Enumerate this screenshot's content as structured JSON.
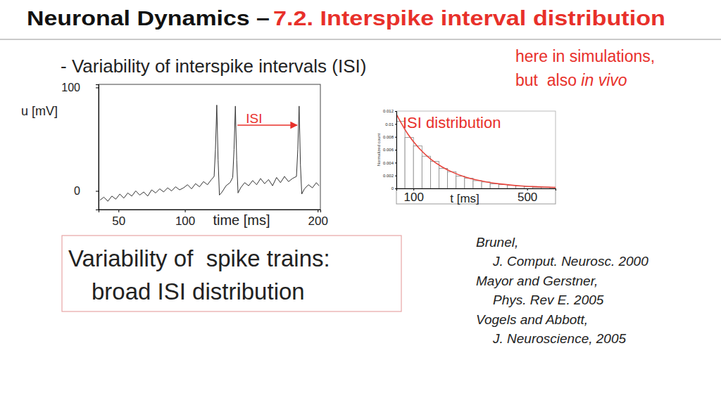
{
  "slide": {
    "title_black": "Neuronal Dynamics – ",
    "title_red": "7.2. Interspike interval distribution",
    "bullet": "- Variability of interspike intervals (ISI)",
    "note": {
      "line1": "here in simulations,",
      "line2": "but  also ",
      "line2_italic": "in vivo"
    },
    "box": [
      "Variability of  spike trains:",
      "broad ISI distribution"
    ],
    "references": [
      {
        "authors": "Brunel,",
        "journal": "J. Comput. Neurosc. 2000"
      },
      {
        "authors": "Mayor and Gerstner,",
        "journal": "Phys. Rev E. 2005"
      },
      {
        "authors": "Vogels and Abbott,",
        "journal": "J. Neuroscience, 2005"
      }
    ]
  },
  "chart_data": [
    {
      "type": "line",
      "ylabel": "u [mV]",
      "xlabel": "time [ms]",
      "annotation": "ISI",
      "color": "#333333",
      "x": [
        36,
        39,
        42,
        45,
        48,
        51,
        54,
        57,
        60,
        63,
        66,
        69,
        72,
        75,
        78,
        81,
        84,
        87,
        90,
        93,
        96,
        99,
        102,
        105,
        108,
        111,
        114,
        117,
        120,
        122,
        123,
        124,
        125,
        126,
        128,
        131,
        134,
        136,
        137,
        138,
        139,
        140,
        142,
        145,
        148,
        151,
        154,
        157,
        160,
        163,
        166,
        169,
        172,
        175,
        178,
        181,
        184,
        185,
        186,
        187,
        188,
        190,
        193,
        196,
        199,
        201
      ],
      "values": [
        -9,
        -6,
        -10,
        -5,
        -8,
        -3,
        -7,
        -2,
        -5,
        0,
        -4,
        -1,
        -5,
        1,
        -2,
        2,
        -1,
        3,
        0,
        4,
        1,
        3,
        6,
        2,
        7,
        4,
        9,
        6,
        11,
        14,
        40,
        83,
        30,
        -4,
        -1,
        5,
        8,
        13,
        40,
        82,
        30,
        -2,
        3,
        8,
        5,
        10,
        6,
        12,
        7,
        11,
        5,
        13,
        8,
        14,
        9,
        12,
        14,
        40,
        82,
        25,
        -3,
        2,
        6,
        3,
        8,
        5
      ],
      "xlim": [
        35,
        202
      ],
      "xticks": [
        50,
        100,
        200
      ],
      "ylim": [
        -18,
        103
      ],
      "yticks": [
        0,
        100
      ]
    },
    {
      "type": "histogram",
      "title": "ISI distribution",
      "xlabel": "t [ms]",
      "ylabel": "Normalized count",
      "color": "#ffffff",
      "bins": [
        40,
        70,
        100,
        130,
        160,
        190,
        220,
        250,
        280,
        310,
        340,
        370,
        400,
        430,
        460,
        490,
        520,
        550,
        580
      ],
      "values": [
        0.0104,
        0.0079,
        0.0066,
        0.005,
        0.0042,
        0.0031,
        0.0026,
        0.0019,
        0.0016,
        0.0012,
        0.001,
        0.0007,
        0.0006,
        0.0005,
        0.0004,
        0.0003,
        0.0002,
        0.0002
      ],
      "series": [
        {
          "type": "line",
          "color": "#e8473f",
          "x": [
            40,
            80,
            120,
            160,
            200,
            240,
            280,
            320,
            360,
            400,
            440,
            480,
            520,
            560,
            600
          ],
          "values": [
            0.0115,
            0.00845,
            0.00621,
            0.00457,
            0.00336,
            0.00247,
            0.00181,
            0.00133,
            0.00098,
            0.00072,
            0.00053,
            0.00039,
            0.00029,
            0.00021,
            0.00015
          ]
        }
      ],
      "xlim": [
        40,
        600
      ],
      "xticks": [
        100,
        500
      ],
      "ylim": [
        0,
        0.012
      ],
      "yticks": [
        0,
        0.002,
        0.004,
        0.006,
        0.008,
        0.01,
        0.012
      ]
    }
  ]
}
